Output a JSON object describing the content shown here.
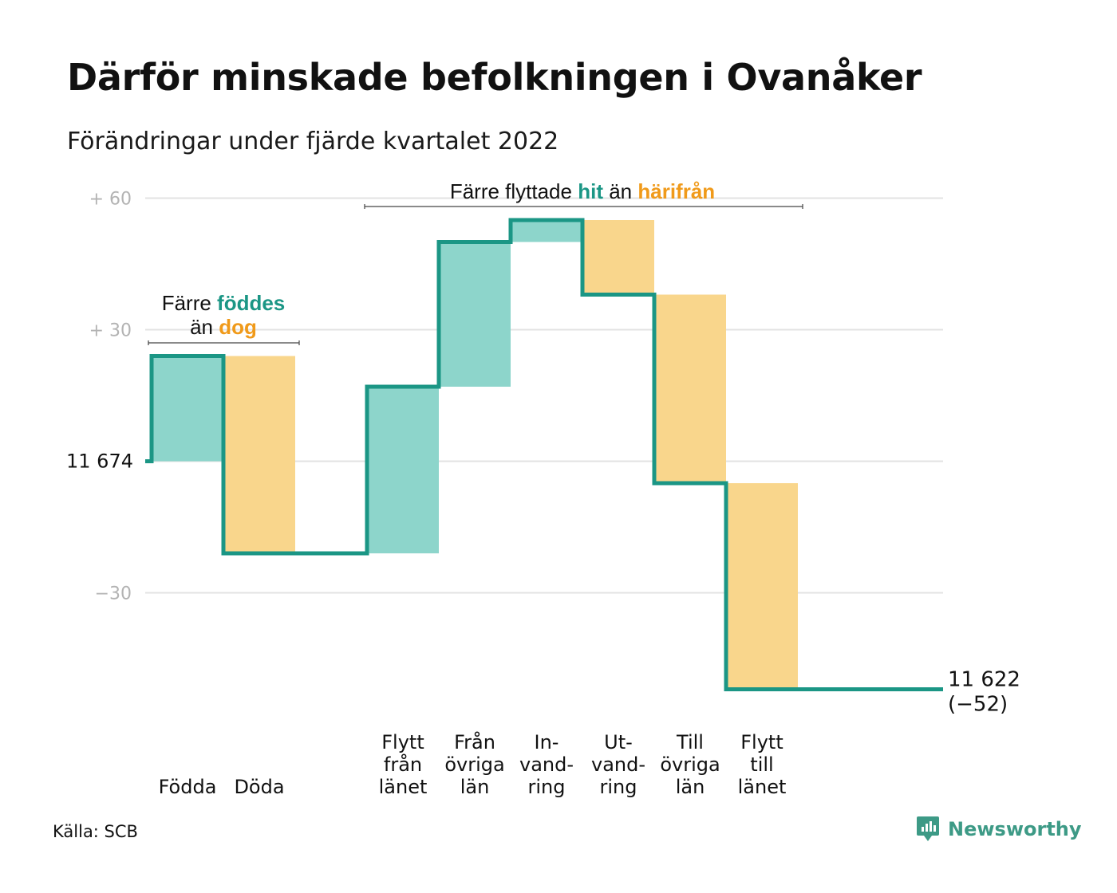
{
  "header": {
    "title": "Därför minskade befolkningen i Ovanåker",
    "subtitle": "Förändringar under fjärde kvartalet 2022"
  },
  "footer": {
    "source": "Källa: SCB",
    "brand": "Newsworthy"
  },
  "colors": {
    "inflow": "#8dd5cb",
    "outflow": "#f9d68c",
    "line": "#1b9685",
    "accent_green": "#1b9685",
    "accent_orange": "#f09a1a",
    "grid": "#e3e3e3",
    "tick": "#b3b3b3"
  },
  "chart_data": {
    "type": "waterfall",
    "start_value": 11674,
    "start_label": "11 674",
    "end_label_value": "11 622",
    "end_label_change": "(−52)",
    "ylim": [
      -60,
      62
    ],
    "y_ticks": [
      {
        "value": 60,
        "label": "+ 60"
      },
      {
        "value": 30,
        "label": "+ 30"
      },
      {
        "value": 0,
        "label": ""
      },
      {
        "value": -30,
        "label": "−30"
      }
    ],
    "steps": [
      {
        "label": [
          "Födda"
        ],
        "change": 24,
        "kind": "inflow"
      },
      {
        "label": [
          "Döda"
        ],
        "change": -45,
        "kind": "outflow"
      },
      {
        "label": [],
        "change": 0,
        "kind": "gap"
      },
      {
        "label": [
          "Flytt",
          "från",
          "länet"
        ],
        "change": 38,
        "kind": "inflow"
      },
      {
        "label": [
          "Från",
          "övriga",
          "län"
        ],
        "change": 33,
        "kind": "inflow"
      },
      {
        "label": [
          "In-",
          "vand-",
          "ring"
        ],
        "change": 5,
        "kind": "inflow"
      },
      {
        "label": [
          "Ut-",
          "vand-",
          "ring"
        ],
        "change": -17,
        "kind": "outflow"
      },
      {
        "label": [
          "Till",
          "övriga",
          "län"
        ],
        "change": -43,
        "kind": "outflow"
      },
      {
        "label": [
          "Flytt",
          "till",
          "länet"
        ],
        "change": -47,
        "kind": "outflow"
      }
    ],
    "annotations": [
      {
        "name": "births-vs-deaths",
        "lines": [
          [
            {
              "text": "Färre ",
              "style": "plain"
            },
            {
              "text": "föddes",
              "style": "green"
            }
          ],
          [
            {
              "text": "än ",
              "style": "plain"
            },
            {
              "text": "dog",
              "style": "orange"
            }
          ]
        ]
      },
      {
        "name": "migration",
        "lines": [
          [
            {
              "text": "Färre flyttade ",
              "style": "plain"
            },
            {
              "text": "hit",
              "style": "green"
            },
            {
              "text": " än ",
              "style": "plain"
            },
            {
              "text": "härifrån",
              "style": "orange"
            }
          ]
        ]
      }
    ]
  }
}
